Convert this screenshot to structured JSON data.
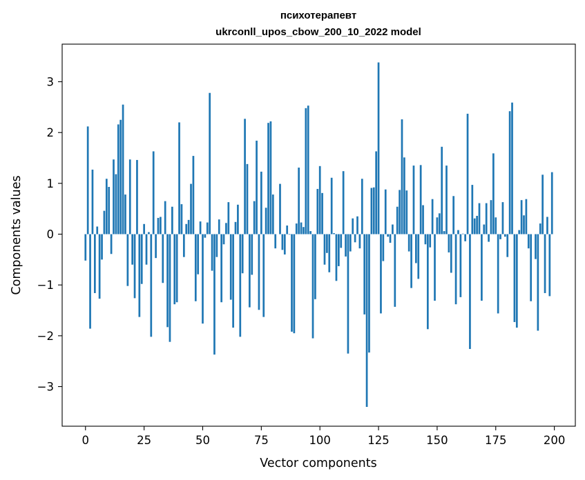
{
  "chart_data": {
    "type": "bar",
    "title": "психотерапевт",
    "subtitle": "ukrconll_upos_cbow_200_10_2022 model",
    "xlabel": "Vector components",
    "ylabel": "Components values",
    "xlim": [
      -9.95,
      208.95
    ],
    "ylim": [
      -3.78,
      3.74
    ],
    "xticks": [
      0,
      25,
      50,
      75,
      100,
      125,
      150,
      175,
      200
    ],
    "yticks": [
      -3,
      -2,
      -1,
      0,
      1,
      2,
      3
    ],
    "ytick_labels": [
      "−3",
      "−2",
      "−1",
      "0",
      "1",
      "2",
      "3"
    ],
    "grid": false,
    "bar_color": "#1f77b4",
    "x": [
      0,
      1,
      2,
      3,
      4,
      5,
      6,
      7,
      8,
      9,
      10,
      11,
      12,
      13,
      14,
      15,
      16,
      17,
      18,
      19,
      20,
      21,
      22,
      23,
      24,
      25,
      26,
      27,
      28,
      29,
      30,
      31,
      32,
      33,
      34,
      35,
      36,
      37,
      38,
      39,
      40,
      41,
      42,
      43,
      44,
      45,
      46,
      47,
      48,
      49,
      50,
      51,
      52,
      53,
      54,
      55,
      56,
      57,
      58,
      59,
      60,
      61,
      62,
      63,
      64,
      65,
      66,
      67,
      68,
      69,
      70,
      71,
      72,
      73,
      74,
      75,
      76,
      77,
      78,
      79,
      80,
      81,
      82,
      83,
      84,
      85,
      86,
      87,
      88,
      89,
      90,
      91,
      92,
      93,
      94,
      95,
      96,
      97,
      98,
      99,
      100,
      101,
      102,
      103,
      104,
      105,
      106,
      107,
      108,
      109,
      110,
      111,
      112,
      113,
      114,
      115,
      116,
      117,
      118,
      119,
      120,
      121,
      122,
      123,
      124,
      125,
      126,
      127,
      128,
      129,
      130,
      131,
      132,
      133,
      134,
      135,
      136,
      137,
      138,
      139,
      140,
      141,
      142,
      143,
      144,
      145,
      146,
      147,
      148,
      149,
      150,
      151,
      152,
      153,
      154,
      155,
      156,
      157,
      158,
      159,
      160,
      161,
      162,
      163,
      164,
      165,
      166,
      167,
      168,
      169,
      170,
      171,
      172,
      173,
      174,
      175,
      176,
      177,
      178,
      179,
      180,
      181,
      182,
      183,
      184,
      185,
      186,
      187,
      188,
      189,
      190,
      191,
      192,
      193,
      194,
      195,
      196,
      197,
      198,
      199
    ],
    "values": [
      -0.52,
      2.12,
      -1.86,
      1.27,
      -1.16,
      0.15,
      -1.27,
      -0.5,
      0.46,
      1.09,
      0.93,
      -0.39,
      1.47,
      1.18,
      2.16,
      2.25,
      2.55,
      0.78,
      -1.02,
      1.47,
      -0.6,
      -1.26,
      1.46,
      -1.63,
      -0.98,
      0.2,
      -0.6,
      0.04,
      -2.02,
      1.63,
      -0.47,
      0.32,
      0.34,
      -0.96,
      0.65,
      -1.83,
      -2.12,
      0.54,
      -1.38,
      -1.34,
      2.2,
      0.59,
      -0.45,
      0.2,
      0.28,
      0.99,
      1.54,
      -1.32,
      -0.79,
      0.25,
      -1.76,
      -0.07,
      0.23,
      2.78,
      -0.72,
      -2.37,
      -0.45,
      0.29,
      -1.34,
      -0.2,
      0.22,
      0.63,
      -1.29,
      -1.84,
      0.24,
      0.58,
      -2.02,
      -0.77,
      2.27,
      1.38,
      -1.44,
      -0.8,
      0.65,
      1.84,
      -1.49,
      1.23,
      -1.63,
      0.52,
      2.19,
      2.22,
      0.78,
      -0.28,
      0.0,
      0.99,
      -0.31,
      -0.4,
      0.17,
      -0.01,
      -1.92,
      -1.95,
      0.21,
      1.31,
      0.23,
      0.14,
      2.48,
      2.53,
      0.06,
      -2.05,
      -1.28,
      0.89,
      1.34,
      0.81,
      -0.6,
      -0.37,
      -0.75,
      1.11,
      0.02,
      -0.92,
      -0.63,
      -0.27,
      1.24,
      -0.44,
      -2.35,
      -0.34,
      0.31,
      -0.16,
      0.35,
      -0.28,
      1.09,
      -1.58,
      -3.4,
      -2.33,
      0.91,
      0.92,
      1.63,
      3.38,
      -1.56,
      -0.53,
      0.88,
      -0.05,
      -0.17,
      0.19,
      -1.43,
      0.54,
      0.87,
      2.26,
      1.51,
      0.86,
      -0.34,
      -1.06,
      1.35,
      -0.57,
      -0.88,
      1.36,
      0.57,
      -0.2,
      -1.87,
      -0.26,
      0.69,
      -1.31,
      0.33,
      0.41,
      1.72,
      0.06,
      1.35,
      -0.36,
      -0.76,
      0.75,
      -1.38,
      0.08,
      -1.24,
      0.01,
      -0.14,
      2.37,
      -2.26,
      0.97,
      0.31,
      0.36,
      0.61,
      -1.31,
      0.19,
      0.61,
      -0.15,
      0.67,
      1.59,
      0.33,
      -1.56,
      -0.1,
      0.63,
      -0.05,
      -0.45,
      2.42,
      2.59,
      -1.73,
      -1.84,
      0.08,
      0.67,
      0.37,
      0.69,
      -0.28,
      -1.32,
      0.0,
      -0.49,
      -1.9,
      0.21,
      1.17,
      -1.16,
      0.34,
      -1.22,
      1.22
    ]
  }
}
